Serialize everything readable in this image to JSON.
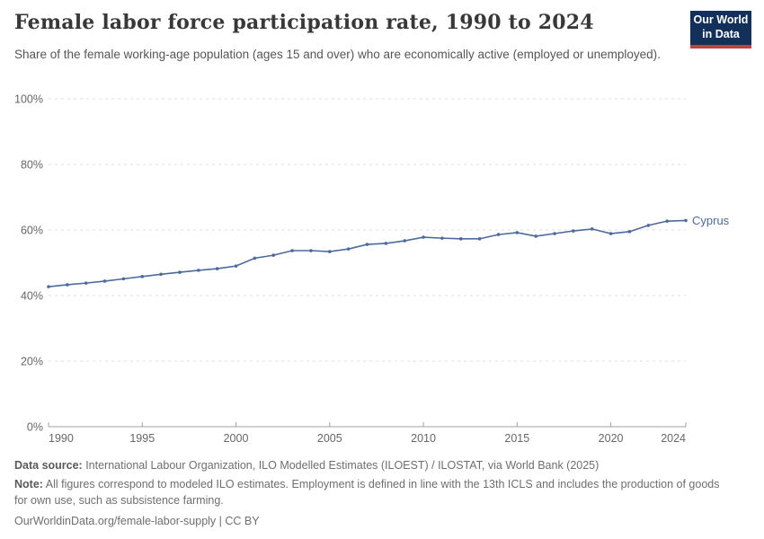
{
  "header": {
    "title": "Female labor force participation rate, 1990 to 2024",
    "subtitle": "Share of the female working-age population (ages 15 and over) who are economically active (employed or unemployed).",
    "logo": {
      "line1": "Our World",
      "line2": "in Data"
    }
  },
  "chart_data": {
    "type": "line",
    "title": "Female labor force participation rate, 1990 to 2024",
    "xlabel": "",
    "ylabel": "",
    "xlim": [
      1990,
      2024
    ],
    "ylim": [
      0,
      100
    ],
    "grid": "horizontal-dashed",
    "legend_position": "end-of-line-label",
    "x_ticks": [
      1990,
      1995,
      2000,
      2005,
      2010,
      2015,
      2020,
      2024
    ],
    "x_tick_labels": [
      "1990",
      "1995",
      "2000",
      "2005",
      "2010",
      "2015",
      "2020",
      "2024"
    ],
    "y_ticks": [
      0,
      20,
      40,
      60,
      80,
      100
    ],
    "y_tick_labels": [
      "0%",
      "20%",
      "40%",
      "60%",
      "80%",
      "100%"
    ],
    "series": [
      {
        "name": "Cyprus",
        "color": "#4c6a9c",
        "x": [
          1990,
          1991,
          1992,
          1993,
          1994,
          1995,
          1996,
          1997,
          1998,
          1999,
          2000,
          2001,
          2002,
          2003,
          2004,
          2005,
          2006,
          2007,
          2008,
          2009,
          2010,
          2011,
          2012,
          2013,
          2014,
          2015,
          2016,
          2017,
          2018,
          2019,
          2020,
          2021,
          2022,
          2023,
          2024
        ],
        "values": [
          42.7,
          43.3,
          43.8,
          44.4,
          45.1,
          45.8,
          46.5,
          47.1,
          47.7,
          48.2,
          49.0,
          51.4,
          52.3,
          53.7,
          53.7,
          53.4,
          54.2,
          55.6,
          55.9,
          56.7,
          57.8,
          57.5,
          57.3,
          57.3,
          58.6,
          59.2,
          58.1,
          58.9,
          59.7,
          60.3,
          58.9,
          59.5,
          61.4,
          62.7,
          62.9
        ]
      }
    ]
  },
  "footer": {
    "data_source_label": "Data source:",
    "data_source_text": " International Labour Organization, ILO Modelled Estimates (ILOEST) / ILOSTAT, via World Bank (2025)",
    "note_label": "Note:",
    "note_text": " All figures correspond to modeled ILO estimates. Employment is defined in line with the 13th ICLS and includes the production of goods for own use, such as subsistence farming.",
    "license": "OurWorldinData.org/female-labor-supply | CC BY"
  },
  "colors": {
    "line": "#4c6a9c",
    "series_label": "#4c6a9c",
    "grid": "#dcdcdc",
    "axis": "#a1a1a1",
    "tick_text": "#666666",
    "title": "#383838",
    "subtitle": "#555555",
    "footer": "#6e6e6e",
    "logo_bg": "#12305a",
    "logo_red": "#c0423c"
  }
}
